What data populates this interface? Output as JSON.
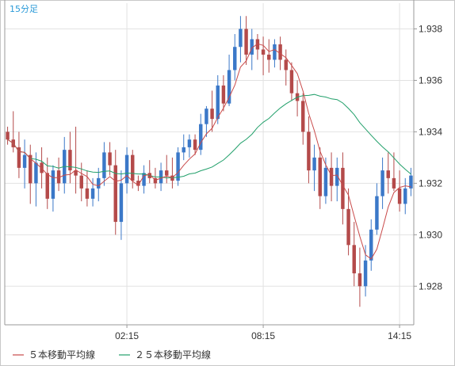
{
  "timeframe_label": "15分足",
  "colors": {
    "up": "#3b78c8",
    "down": "#b44a4a",
    "ma5": "#c94a4a",
    "ma25": "#22a06b",
    "grid": "#e2e2e2",
    "label": "#2a9ad8"
  },
  "chart_data": {
    "type": "candlestick",
    "title": "",
    "xlabel": "",
    "ylabel": "",
    "ylim": [
      1.9265,
      1.939
    ],
    "y_ticks": [
      "1.938",
      "1.936",
      "1.934",
      "1.932",
      "1.930",
      "1.928"
    ],
    "x_ticks": [
      {
        "index": 21,
        "label": "02:15"
      },
      {
        "index": 45,
        "label": "08:15"
      },
      {
        "index": 69,
        "label": "14:15"
      }
    ],
    "legend": [
      {
        "key": "ma5",
        "label": "５本移動平均線"
      },
      {
        "key": "ma25",
        "label": "２５本移動平均線"
      }
    ],
    "candles": [
      [
        1.934,
        1.9342,
        1.9335,
        1.9337
      ],
      [
        1.9337,
        1.9348,
        1.9332,
        1.9334
      ],
      [
        1.9334,
        1.934,
        1.9322,
        1.9326
      ],
      [
        1.9326,
        1.9337,
        1.9318,
        1.9331
      ],
      [
        1.9331,
        1.9335,
        1.9312,
        1.932
      ],
      [
        1.932,
        1.9332,
        1.9311,
        1.9328
      ],
      [
        1.9328,
        1.9334,
        1.9318,
        1.9324
      ],
      [
        1.9324,
        1.933,
        1.931,
        1.9314
      ],
      [
        1.9314,
        1.9327,
        1.9309,
        1.9325
      ],
      [
        1.9325,
        1.933,
        1.9317,
        1.932
      ],
      [
        1.932,
        1.9338,
        1.9316,
        1.9333
      ],
      [
        1.9333,
        1.934,
        1.932,
        1.9325
      ],
      [
        1.9325,
        1.9342,
        1.9316,
        1.9323
      ],
      [
        1.9323,
        1.9328,
        1.9313,
        1.9318
      ],
      [
        1.9318,
        1.9325,
        1.9311,
        1.9314
      ],
      [
        1.9314,
        1.9322,
        1.9311,
        1.9318
      ],
      [
        1.9318,
        1.9326,
        1.9313,
        1.9322
      ],
      [
        1.9322,
        1.9336,
        1.9319,
        1.9332
      ],
      [
        1.9332,
        1.9336,
        1.9323,
        1.9327
      ],
      [
        1.9327,
        1.9333,
        1.93,
        1.9305
      ],
      [
        1.9305,
        1.9325,
        1.9298,
        1.932
      ],
      [
        1.932,
        1.9334,
        1.9316,
        1.9331
      ],
      [
        1.9331,
        1.9333,
        1.9318,
        1.9321
      ],
      [
        1.9321,
        1.9323,
        1.9317,
        1.9319
      ],
      [
        1.9319,
        1.9327,
        1.9316,
        1.9324
      ],
      [
        1.9324,
        1.9329,
        1.932,
        1.9322
      ],
      [
        1.9322,
        1.9326,
        1.9318,
        1.932
      ],
      [
        1.932,
        1.9328,
        1.9317,
        1.9325
      ],
      [
        1.9325,
        1.9331,
        1.932,
        1.9323
      ],
      [
        1.9323,
        1.933,
        1.9318,
        1.9321
      ],
      [
        1.9321,
        1.9334,
        1.9319,
        1.9332
      ],
      [
        1.9332,
        1.9339,
        1.9329,
        1.9334
      ],
      [
        1.9334,
        1.9339,
        1.933,
        1.9337
      ],
      [
        1.9337,
        1.9339,
        1.9331,
        1.9333
      ],
      [
        1.9333,
        1.9347,
        1.9331,
        1.9343
      ],
      [
        1.9343,
        1.935,
        1.9338,
        1.9349
      ],
      [
        1.9349,
        1.9356,
        1.934,
        1.9345
      ],
      [
        1.9345,
        1.9362,
        1.9343,
        1.9358
      ],
      [
        1.9358,
        1.9362,
        1.9348,
        1.9351
      ],
      [
        1.9351,
        1.937,
        1.935,
        1.9364
      ],
      [
        1.9364,
        1.9378,
        1.936,
        1.9373
      ],
      [
        1.9373,
        1.9385,
        1.9367,
        1.938
      ],
      [
        1.938,
        1.9385,
        1.9366,
        1.937
      ],
      [
        1.937,
        1.938,
        1.9364,
        1.9376
      ],
      [
        1.9376,
        1.9378,
        1.9368,
        1.9372
      ],
      [
        1.9372,
        1.9377,
        1.9362,
        1.937
      ],
      [
        1.937,
        1.9376,
        1.9363,
        1.9368
      ],
      [
        1.9368,
        1.9376,
        1.9365,
        1.9374
      ],
      [
        1.9374,
        1.9377,
        1.9364,
        1.9368
      ],
      [
        1.9368,
        1.9372,
        1.9358,
        1.9364
      ],
      [
        1.9364,
        1.9367,
        1.9352,
        1.9355
      ],
      [
        1.9355,
        1.936,
        1.9346,
        1.9352
      ],
      [
        1.9352,
        1.9355,
        1.9335,
        1.934
      ],
      [
        1.934,
        1.9346,
        1.932,
        1.9325
      ],
      [
        1.9325,
        1.9335,
        1.9317,
        1.933
      ],
      [
        1.933,
        1.9334,
        1.931,
        1.9315
      ],
      [
        1.9315,
        1.933,
        1.9312,
        1.9326
      ],
      [
        1.9326,
        1.9332,
        1.9313,
        1.9319
      ],
      [
        1.9319,
        1.933,
        1.9313,
        1.9326
      ],
      [
        1.9326,
        1.9332,
        1.9304,
        1.931
      ],
      [
        1.931,
        1.9318,
        1.9292,
        1.9296
      ],
      [
        1.9296,
        1.9305,
        1.928,
        1.9285
      ],
      [
        1.9285,
        1.9295,
        1.9272,
        1.928
      ],
      [
        1.928,
        1.9296,
        1.9276,
        1.929
      ],
      [
        1.929,
        1.9306,
        1.9286,
        1.9302
      ],
      [
        1.9302,
        1.932,
        1.93,
        1.9315
      ],
      [
        1.9315,
        1.933,
        1.931,
        1.9325
      ],
      [
        1.9325,
        1.9332,
        1.9316,
        1.9322
      ],
      [
        1.9322,
        1.9332,
        1.9317,
        1.9318
      ],
      [
        1.9318,
        1.9325,
        1.9309,
        1.9312
      ],
      [
        1.9312,
        1.9322,
        1.9308,
        1.9318
      ],
      [
        1.9318,
        1.9326,
        1.9315,
        1.9323
      ]
    ]
  }
}
